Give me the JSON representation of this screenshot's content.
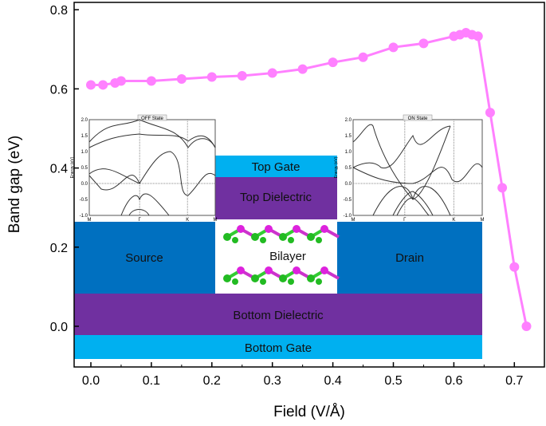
{
  "chart_data": {
    "type": "line",
    "xlabel": "Field (V/Å)",
    "ylabel": "Band gap (eV)",
    "xlim": [
      -0.03,
      0.75
    ],
    "ylim": [
      -0.1,
      0.8
    ],
    "x_ticks": [
      "0.0",
      "0.1",
      "0.2",
      "0.3",
      "0.4",
      "0.5",
      "0.6",
      "0.7"
    ],
    "y_ticks": [
      "0.0",
      "0.2",
      "0.4",
      "0.6",
      "0.8"
    ],
    "grid": false,
    "series": [
      {
        "color": "#ff80ff",
        "x": [
          0.0,
          0.02,
          0.04,
          0.05,
          0.1,
          0.15,
          0.2,
          0.25,
          0.3,
          0.35,
          0.4,
          0.45,
          0.5,
          0.55,
          0.6,
          0.61,
          0.62,
          0.63,
          0.64,
          0.66,
          0.68,
          0.7,
          0.72
        ],
        "y": [
          0.61,
          0.61,
          0.615,
          0.62,
          0.62,
          0.625,
          0.63,
          0.633,
          0.64,
          0.65,
          0.667,
          0.68,
          0.705,
          0.715,
          0.733,
          0.737,
          0.742,
          0.737,
          0.733,
          0.54,
          0.35,
          0.15,
          0.0
        ]
      }
    ]
  },
  "device": {
    "top_gate": "Top Gate",
    "top_dielectric": "Top Dielectric",
    "source": "Source",
    "bilayer": "Bilayer",
    "drain": "Drain",
    "bottom_dielectric": "Bottom Dielectric",
    "bottom_gate": "Bottom Gate",
    "colors": {
      "gate": "#00b0f0",
      "dielectric": "#7030a0",
      "contact": "#0070c0"
    }
  },
  "insets": [
    {
      "title": "OFF State",
      "ylabel": "Energy (eV)",
      "y_ticks": [
        "2.0",
        "1.5",
        "1.0",
        "0.5",
        "0.0",
        "-0.5",
        "-1.0"
      ],
      "k_labels": [
        "M",
        "Γ",
        "K",
        "M"
      ]
    },
    {
      "title": "ON State",
      "ylabel": "Energy (eV)",
      "y_ticks": [
        "2.0",
        "1.5",
        "1.0",
        "0.5",
        "0.0",
        "-0.5",
        "-1.0"
      ],
      "k_labels": [
        "M",
        "Γ",
        "K",
        "M"
      ]
    }
  ]
}
